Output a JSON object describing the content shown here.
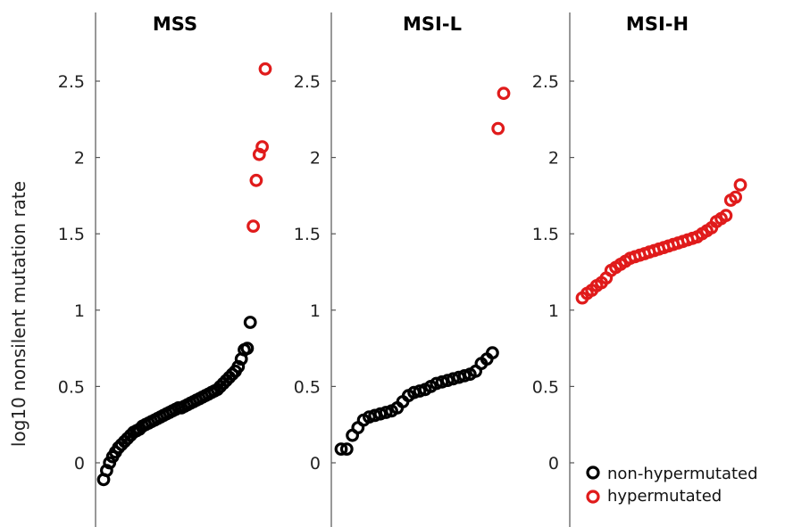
{
  "colors": {
    "non_hypermutated": "#000000",
    "hypermutated": "#e01b1b",
    "axis": "#555555"
  },
  "legend": {
    "placement": "bottom-right",
    "items": [
      {
        "label": "non-hypermutated",
        "color": "#000000"
      },
      {
        "label": "hypermutated",
        "color": "#e01b1b"
      }
    ]
  },
  "chart_data": {
    "type": "scatter",
    "ylabel": "log10 nonsilent mutation rate",
    "ylim": [
      -0.4,
      2.95
    ],
    "yticks": [
      0,
      0.5,
      1,
      1.5,
      2,
      2.5
    ],
    "ytick_labels": [
      "0",
      "0.5",
      "1",
      "1.5",
      "2",
      "2.5"
    ],
    "grid": false,
    "panels": [
      {
        "title": "MSS",
        "series": [
          {
            "name": "non-hypermutated",
            "values": [
              -0.11,
              -0.05,
              0.0,
              0.04,
              0.07,
              0.1,
              0.12,
              0.14,
              0.16,
              0.18,
              0.2,
              0.21,
              0.22,
              0.24,
              0.25,
              0.26,
              0.27,
              0.28,
              0.29,
              0.3,
              0.31,
              0.32,
              0.33,
              0.34,
              0.35,
              0.36,
              0.36,
              0.37,
              0.38,
              0.39,
              0.4,
              0.41,
              0.42,
              0.43,
              0.44,
              0.45,
              0.46,
              0.47,
              0.48,
              0.5,
              0.52,
              0.54,
              0.56,
              0.58,
              0.6,
              0.63,
              0.68,
              0.74,
              0.75,
              0.92
            ]
          },
          {
            "name": "hypermutated",
            "values": [
              1.55,
              1.85,
              2.02,
              2.07,
              2.58
            ]
          }
        ]
      },
      {
        "title": "MSI-L",
        "series": [
          {
            "name": "non-hypermutated",
            "values": [
              0.09,
              0.09,
              0.18,
              0.23,
              0.28,
              0.3,
              0.31,
              0.32,
              0.33,
              0.34,
              0.36,
              0.4,
              0.44,
              0.46,
              0.47,
              0.48,
              0.5,
              0.52,
              0.53,
              0.54,
              0.55,
              0.56,
              0.57,
              0.58,
              0.6,
              0.65,
              0.68,
              0.72
            ]
          },
          {
            "name": "hypermutated",
            "values": [
              2.19,
              2.42
            ]
          }
        ]
      },
      {
        "title": "MSI-H",
        "series": [
          {
            "name": "hypermutated",
            "values": [
              1.08,
              1.11,
              1.13,
              1.16,
              1.18,
              1.21,
              1.26,
              1.28,
              1.3,
              1.32,
              1.34,
              1.35,
              1.36,
              1.37,
              1.38,
              1.39,
              1.4,
              1.41,
              1.42,
              1.43,
              1.44,
              1.45,
              1.46,
              1.47,
              1.48,
              1.5,
              1.52,
              1.54,
              1.58,
              1.6,
              1.62,
              1.72,
              1.74,
              1.82
            ]
          }
        ]
      }
    ]
  }
}
